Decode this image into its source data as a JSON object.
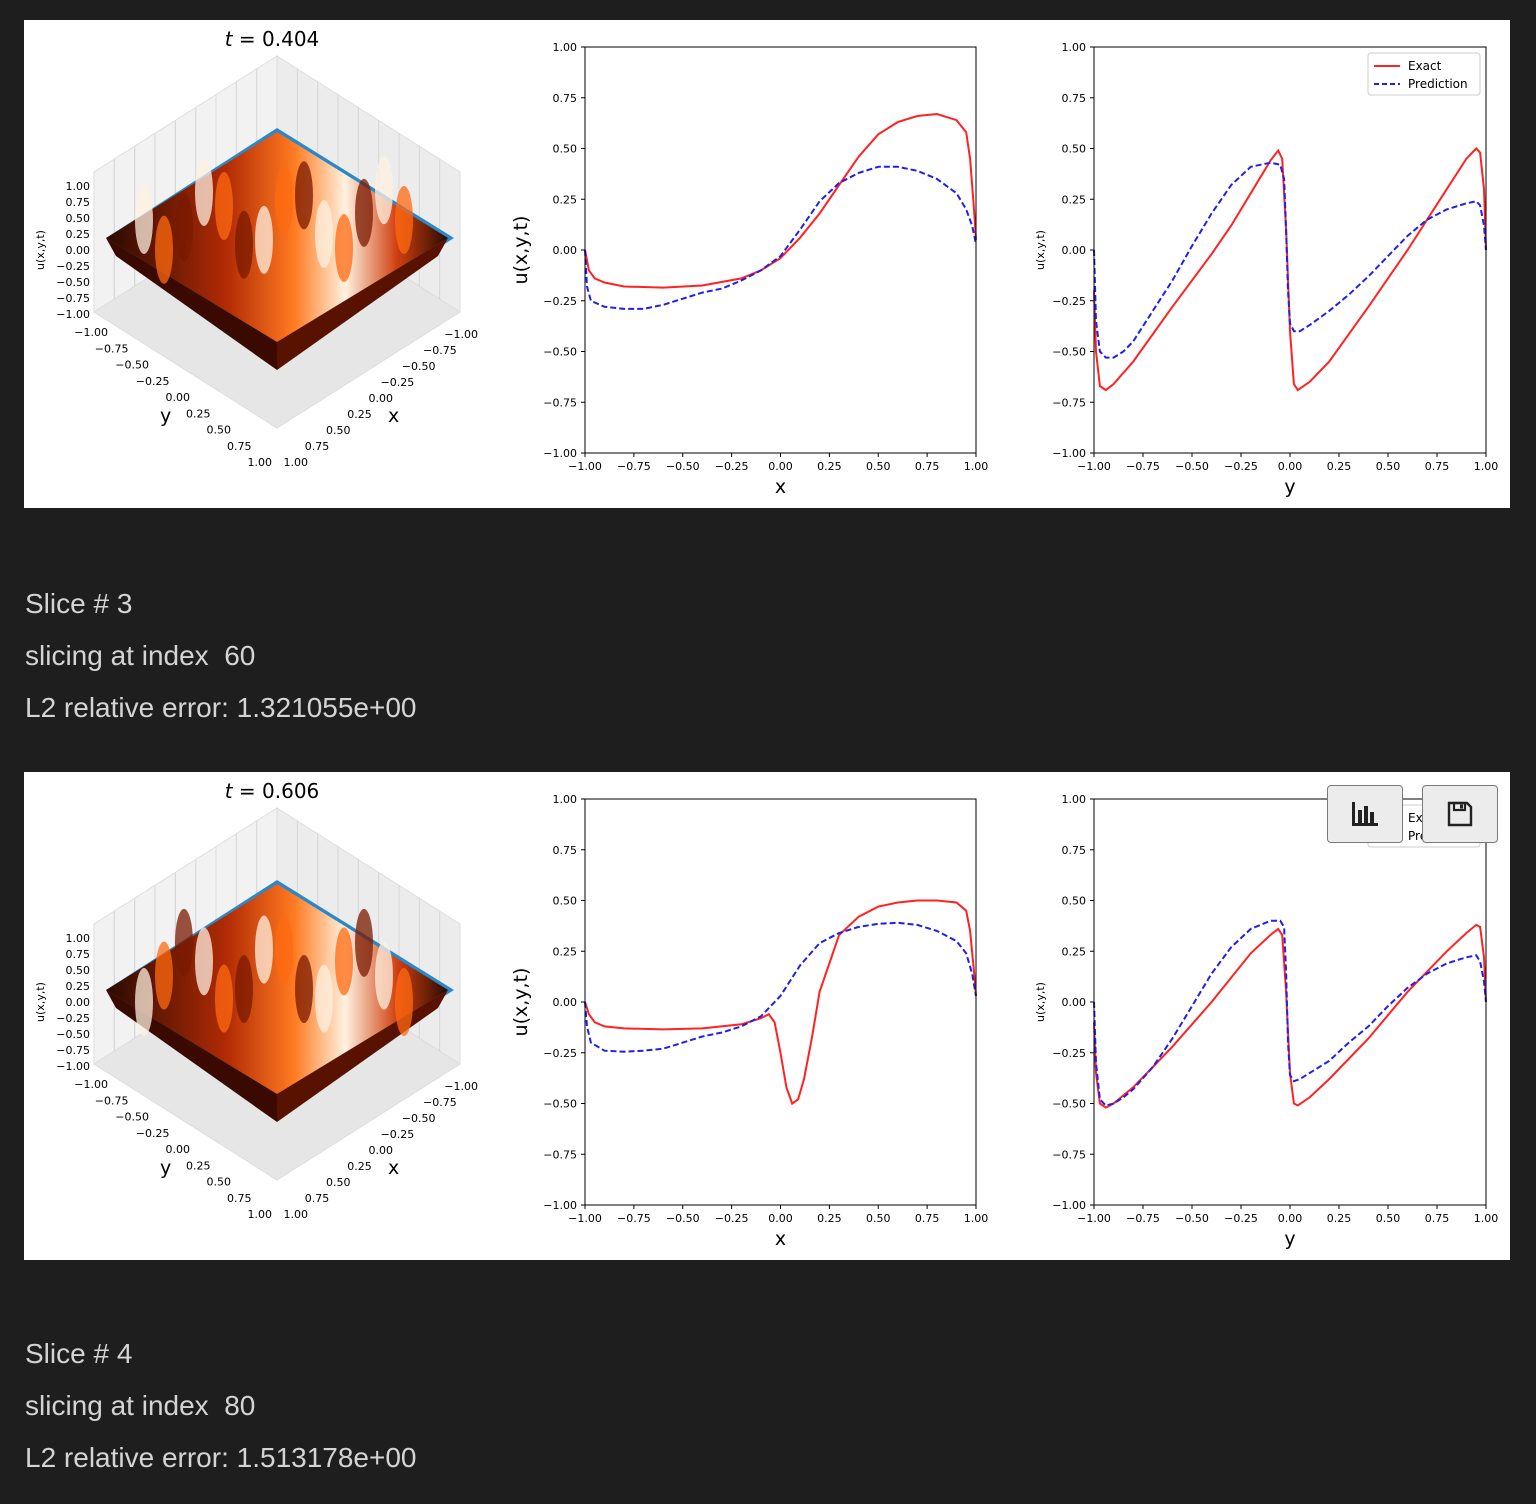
{
  "outputs": [
    {
      "title": "t = 0.404",
      "surface_axes": {
        "zlabel": "u(x,y,t)",
        "xlabel": "x",
        "ylabel": "y",
        "zticks": [
          "1.00",
          "0.75",
          "0.50",
          "0.25",
          "0.00",
          "−0.25",
          "−0.50",
          "−0.75",
          "−1.00"
        ],
        "xticks": [
          "−1.00",
          "−0.75",
          "−0.50",
          "−0.25",
          "0.00",
          "0.25",
          "0.50",
          "0.75",
          "1.00"
        ],
        "yticks": [
          "−1.00",
          "−0.75",
          "−0.50",
          "−0.25",
          "0.00",
          "0.25",
          "0.50",
          "0.75",
          "1.00"
        ]
      }
    },
    {
      "title": "t = 0.606",
      "surface_axes": {
        "zlabel": "u(x,y,t)",
        "xlabel": "x",
        "ylabel": "y",
        "zticks": [
          "1.00",
          "0.75",
          "0.50",
          "0.25",
          "0.00",
          "−0.25",
          "−0.50",
          "−0.75",
          "−1.00"
        ],
        "xticks": [
          "−1.00",
          "−0.75",
          "−0.50",
          "−0.25",
          "0.00",
          "0.25",
          "0.50",
          "0.75",
          "1.00"
        ],
        "yticks": [
          "−1.00",
          "−0.75",
          "−0.50",
          "−0.25",
          "0.00",
          "0.25",
          "0.50",
          "0.75",
          "1.00"
        ]
      }
    }
  ],
  "text_blocks": [
    {
      "slice": "Slice # 3",
      "index": "slicing at index  60",
      "error": "L2 relative error: 1.321055e+00"
    },
    {
      "slice": "Slice # 4",
      "index": "slicing at index  80",
      "error": "L2 relative error: 1.513178e+00"
    }
  ],
  "toolbar": {
    "chart_icon": "bar-chart-icon",
    "save_icon": "floppy-disk-icon"
  },
  "colors": {
    "exact": "#ff2222",
    "prediction": "#2020ee",
    "background": "#1e1e1e",
    "text": "#d4d4d4",
    "surface_low": "#2a0a00",
    "surface_high": "#ff7a20",
    "base": "#2b88c8"
  },
  "chart_data": [
    {
      "type": "line",
      "xlabel": "x",
      "ylabel": "u(x,y,t)",
      "xlim": [
        -1,
        1
      ],
      "ylim": [
        -1,
        1
      ],
      "xticks": [
        "−1.00",
        "−0.75",
        "−0.50",
        "−0.25",
        "0.00",
        "0.25",
        "0.50",
        "0.75",
        "1.00"
      ],
      "yticks": [
        "1.00",
        "0.75",
        "0.50",
        "0.25",
        "0.00",
        "−0.25",
        "−0.50",
        "−0.75",
        "−1.00"
      ],
      "series": [
        {
          "name": "Exact",
          "style": "solid",
          "x": [
            -1,
            -0.98,
            -0.95,
            -0.9,
            -0.8,
            -0.6,
            -0.4,
            -0.2,
            -0.1,
            0,
            0.1,
            0.2,
            0.3,
            0.4,
            0.5,
            0.6,
            0.7,
            0.8,
            0.9,
            0.95,
            0.97,
            0.99,
            1
          ],
          "y": [
            0,
            -0.1,
            -0.14,
            -0.16,
            -0.18,
            -0.185,
            -0.175,
            -0.14,
            -0.1,
            -0.04,
            0.06,
            0.18,
            0.32,
            0.46,
            0.57,
            0.63,
            0.66,
            0.67,
            0.64,
            0.58,
            0.45,
            0.2,
            0.05
          ]
        },
        {
          "name": "Prediction",
          "style": "dashed",
          "x": [
            -1,
            -0.99,
            -0.97,
            -0.9,
            -0.8,
            -0.7,
            -0.6,
            -0.5,
            -0.4,
            -0.3,
            -0.2,
            -0.1,
            0,
            0.1,
            0.2,
            0.3,
            0.4,
            0.5,
            0.6,
            0.7,
            0.8,
            0.9,
            0.95,
            0.98,
            1
          ],
          "y": [
            0,
            -0.18,
            -0.25,
            -0.28,
            -0.29,
            -0.29,
            -0.27,
            -0.24,
            -0.21,
            -0.19,
            -0.15,
            -0.1,
            -0.03,
            0.1,
            0.24,
            0.33,
            0.38,
            0.41,
            0.41,
            0.39,
            0.35,
            0.28,
            0.2,
            0.12,
            0.03
          ]
        }
      ]
    },
    {
      "type": "line",
      "xlabel": "y",
      "ylabel": "u(x,y,t)",
      "xlim": [
        -1,
        1
      ],
      "ylim": [
        -1,
        1
      ],
      "legend": "top-right",
      "xticks": [
        "−1.00",
        "−0.75",
        "−0.50",
        "−0.25",
        "0.00",
        "0.25",
        "0.50",
        "0.75",
        "1.00"
      ],
      "yticks": [
        "1.00",
        "0.75",
        "0.50",
        "0.25",
        "0.00",
        "−0.25",
        "−0.50",
        "−0.75",
        "−1.00"
      ],
      "series": [
        {
          "name": "Exact",
          "style": "solid",
          "x": [
            -1,
            -0.99,
            -0.97,
            -0.94,
            -0.9,
            -0.8,
            -0.6,
            -0.4,
            -0.3,
            -0.2,
            -0.1,
            -0.06,
            -0.04,
            -0.02,
            0,
            0.02,
            0.04,
            0.1,
            0.2,
            0.4,
            0.6,
            0.8,
            0.9,
            0.95,
            0.97,
            0.99,
            1
          ],
          "y": [
            -0.2,
            -0.5,
            -0.67,
            -0.69,
            -0.66,
            -0.55,
            -0.28,
            -0.02,
            0.12,
            0.28,
            0.44,
            0.49,
            0.45,
            0.1,
            -0.4,
            -0.66,
            -0.69,
            -0.65,
            -0.55,
            -0.28,
            0.0,
            0.3,
            0.45,
            0.5,
            0.48,
            0.3,
            0.0
          ]
        },
        {
          "name": "Prediction",
          "style": "dashed",
          "x": [
            -1,
            -0.99,
            -0.97,
            -0.94,
            -0.9,
            -0.85,
            -0.8,
            -0.7,
            -0.6,
            -0.5,
            -0.4,
            -0.3,
            -0.2,
            -0.1,
            -0.05,
            -0.03,
            -0.02,
            -0.01,
            0,
            0.02,
            0.05,
            0.1,
            0.2,
            0.3,
            0.4,
            0.5,
            0.6,
            0.7,
            0.8,
            0.9,
            0.95,
            0.97,
            0.99,
            1
          ],
          "y": [
            0,
            -0.35,
            -0.5,
            -0.53,
            -0.53,
            -0.5,
            -0.45,
            -0.3,
            -0.15,
            0.02,
            0.18,
            0.32,
            0.41,
            0.43,
            0.42,
            0.35,
            0.1,
            -0.2,
            -0.36,
            -0.4,
            -0.4,
            -0.37,
            -0.3,
            -0.22,
            -0.13,
            -0.03,
            0.07,
            0.15,
            0.2,
            0.23,
            0.24,
            0.22,
            0.12,
            0.0
          ]
        }
      ]
    },
    {
      "type": "line",
      "xlabel": "x",
      "ylabel": "u(x,y,t)",
      "xlim": [
        -1,
        1
      ],
      "ylim": [
        -1,
        1
      ],
      "xticks": [
        "−1.00",
        "−0.75",
        "−0.50",
        "−0.25",
        "0.00",
        "0.25",
        "0.50",
        "0.75",
        "1.00"
      ],
      "yticks": [
        "1.00",
        "0.75",
        "0.50",
        "0.25",
        "0.00",
        "−0.25",
        "−0.50",
        "−0.75",
        "−1.00"
      ],
      "series": [
        {
          "name": "Exact",
          "style": "solid",
          "x": [
            -1,
            -0.98,
            -0.95,
            -0.9,
            -0.8,
            -0.6,
            -0.4,
            -0.2,
            -0.1,
            -0.06,
            -0.03,
            0,
            0.03,
            0.06,
            0.09,
            0.12,
            0.16,
            0.2,
            0.3,
            0.4,
            0.5,
            0.6,
            0.7,
            0.8,
            0.9,
            0.95,
            0.97,
            0.99,
            1
          ],
          "y": [
            0,
            -0.06,
            -0.1,
            -0.12,
            -0.13,
            -0.135,
            -0.13,
            -0.11,
            -0.08,
            -0.06,
            -0.1,
            -0.25,
            -0.42,
            -0.5,
            -0.48,
            -0.38,
            -0.18,
            0.05,
            0.33,
            0.42,
            0.47,
            0.49,
            0.5,
            0.5,
            0.49,
            0.45,
            0.35,
            0.15,
            0.03
          ]
        },
        {
          "name": "Prediction",
          "style": "dashed",
          "x": [
            -1,
            -0.99,
            -0.97,
            -0.9,
            -0.8,
            -0.7,
            -0.6,
            -0.5,
            -0.4,
            -0.3,
            -0.2,
            -0.1,
            0,
            0.1,
            0.2,
            0.3,
            0.4,
            0.5,
            0.6,
            0.7,
            0.8,
            0.9,
            0.95,
            0.98,
            1
          ],
          "y": [
            0,
            -0.12,
            -0.2,
            -0.24,
            -0.245,
            -0.24,
            -0.23,
            -0.2,
            -0.17,
            -0.15,
            -0.12,
            -0.07,
            0.03,
            0.18,
            0.29,
            0.34,
            0.37,
            0.385,
            0.39,
            0.38,
            0.35,
            0.3,
            0.24,
            0.14,
            0.03
          ]
        }
      ]
    },
    {
      "type": "line",
      "xlabel": "y",
      "ylabel": "u(x,y,t)",
      "xlim": [
        -1,
        1
      ],
      "ylim": [
        -1,
        1
      ],
      "legend": "top-right",
      "xticks": [
        "−1.00",
        "−0.75",
        "−0.50",
        "−0.25",
        "0.00",
        "0.25",
        "0.50",
        "0.75",
        "1.00"
      ],
      "yticks": [
        "1.00",
        "0.75",
        "0.50",
        "0.25",
        "0.00",
        "−0.25",
        "−0.50",
        "−0.75",
        "−1.00"
      ],
      "series": [
        {
          "name": "Exact",
          "style": "solid",
          "x": [
            -1,
            -0.99,
            -0.97,
            -0.94,
            -0.9,
            -0.8,
            -0.6,
            -0.4,
            -0.3,
            -0.2,
            -0.1,
            -0.06,
            -0.04,
            -0.02,
            0,
            0.02,
            0.04,
            0.1,
            0.2,
            0.4,
            0.6,
            0.8,
            0.9,
            0.95,
            0.97,
            0.99,
            1
          ],
          "y": [
            -0.1,
            -0.35,
            -0.5,
            -0.52,
            -0.5,
            -0.42,
            -0.22,
            0.0,
            0.12,
            0.24,
            0.33,
            0.36,
            0.33,
            0.05,
            -0.35,
            -0.5,
            -0.51,
            -0.47,
            -0.38,
            -0.18,
            0.05,
            0.25,
            0.34,
            0.38,
            0.37,
            0.22,
            0.0
          ]
        },
        {
          "name": "Prediction",
          "style": "dashed",
          "x": [
            -1,
            -0.99,
            -0.97,
            -0.94,
            -0.9,
            -0.85,
            -0.8,
            -0.7,
            -0.6,
            -0.5,
            -0.4,
            -0.3,
            -0.2,
            -0.1,
            -0.05,
            -0.03,
            -0.02,
            -0.01,
            0,
            0.02,
            0.05,
            0.1,
            0.2,
            0.3,
            0.4,
            0.5,
            0.6,
            0.7,
            0.8,
            0.9,
            0.95,
            0.97,
            0.99,
            1
          ],
          "y": [
            0,
            -0.3,
            -0.48,
            -0.51,
            -0.5,
            -0.47,
            -0.43,
            -0.32,
            -0.18,
            -0.02,
            0.14,
            0.27,
            0.36,
            0.4,
            0.4,
            0.37,
            0.15,
            -0.2,
            -0.36,
            -0.39,
            -0.38,
            -0.35,
            -0.29,
            -0.2,
            -0.12,
            -0.02,
            0.07,
            0.14,
            0.19,
            0.22,
            0.23,
            0.2,
            0.1,
            0.0
          ]
        }
      ]
    }
  ]
}
